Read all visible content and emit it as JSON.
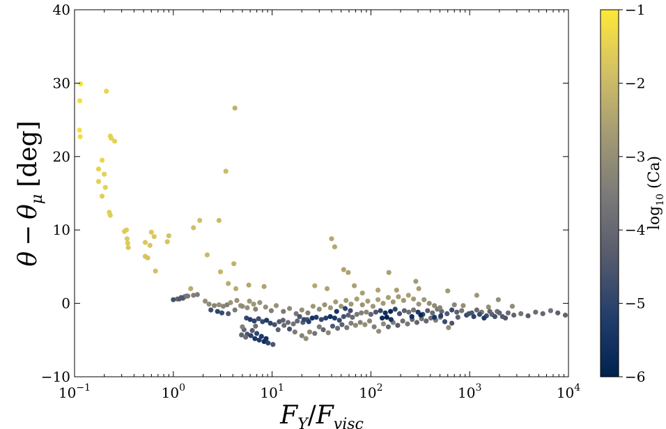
{
  "chart_data": {
    "type": "scatter",
    "title": "",
    "xlabel": {
      "var": "F",
      "sub1": "Y",
      "sep": "/",
      "var2": "F",
      "sub2": "visc"
    },
    "ylabel": {
      "a": "θ",
      "op": "−",
      "b": "θ",
      "sub": "μ",
      "unit": "[deg]"
    },
    "xscale": "log",
    "xlim": [
      0.1,
      10000
    ],
    "ylim": [
      -10,
      40
    ],
    "x_ticks": [
      {
        "value": 0.1,
        "base": "10",
        "exp": "−1"
      },
      {
        "value": 1,
        "base": "10",
        "exp": "0"
      },
      {
        "value": 10,
        "base": "10",
        "exp": "1"
      },
      {
        "value": 100,
        "base": "10",
        "exp": "2"
      },
      {
        "value": 1000,
        "base": "10",
        "exp": "3"
      },
      {
        "value": 10000,
        "base": "10",
        "exp": "4"
      }
    ],
    "y_ticks": [
      {
        "value": -10,
        "label": "−10"
      },
      {
        "value": 0,
        "label": "0"
      },
      {
        "value": 10,
        "label": "10"
      },
      {
        "value": 20,
        "label": "20"
      },
      {
        "value": 30,
        "label": "30"
      },
      {
        "value": 40,
        "label": "40"
      }
    ],
    "grid": false,
    "colorbar": {
      "label": {
        "pre": "log",
        "sub": "10",
        "post": " (Ca)"
      },
      "range": [
        -6,
        -1
      ],
      "colormap": "cividis",
      "colors": [
        "#00224e",
        "#233e6c",
        "#575c6d",
        "#7c7b78",
        "#a59c74",
        "#d3c164",
        "#fee838"
      ],
      "ticks": [
        {
          "value": -1,
          "label": "−1"
        },
        {
          "value": -2,
          "label": "−2"
        },
        {
          "value": -3,
          "label": "−3"
        },
        {
          "value": -4,
          "label": "−4"
        },
        {
          "value": -5,
          "label": "−5"
        },
        {
          "value": -6,
          "label": "−6"
        }
      ]
    },
    "points": [
      [
        0.115,
        29.9,
        -1.15
      ],
      [
        0.113,
        27.6,
        -1.2
      ],
      [
        0.112,
        23.6,
        -1.2
      ],
      [
        0.114,
        22.7,
        -1.25
      ],
      [
        0.21,
        28.9,
        -1.4
      ],
      [
        0.23,
        22.8,
        -1.5
      ],
      [
        0.235,
        22.5,
        -1.5
      ],
      [
        0.255,
        22.1,
        -1.5
      ],
      [
        0.19,
        19.5,
        -1.4
      ],
      [
        0.175,
        18.3,
        -1.45
      ],
      [
        0.2,
        17.6,
        -1.5
      ],
      [
        0.175,
        16.6,
        -1.5
      ],
      [
        0.205,
        15.8,
        -1.5
      ],
      [
        0.19,
        14.6,
        -1.55
      ],
      [
        0.225,
        12.4,
        -1.55
      ],
      [
        0.23,
        12.0,
        -1.6
      ],
      [
        0.32,
        9.8,
        -1.6
      ],
      [
        0.335,
        10.0,
        -1.6
      ],
      [
        0.34,
        8.8,
        -1.65
      ],
      [
        0.345,
        8.2,
        -1.65
      ],
      [
        0.35,
        7.6,
        -1.7
      ],
      [
        0.52,
        8.3,
        -1.7
      ],
      [
        0.6,
        9.7,
        -1.7
      ],
      [
        0.64,
        9.1,
        -1.7
      ],
      [
        0.58,
        7.9,
        -1.75
      ],
      [
        0.52,
        6.4,
        -1.75
      ],
      [
        0.55,
        6.2,
        -1.8
      ],
      [
        0.66,
        4.4,
        -1.85
      ],
      [
        0.9,
        9.2,
        -1.8
      ],
      [
        0.87,
        8.4,
        -1.8
      ],
      [
        1.6,
        10.3,
        -1.9
      ],
      [
        1.85,
        11.3,
        -1.9
      ],
      [
        2.2,
        6.6,
        -2.0
      ],
      [
        2.9,
        11.3,
        -2.0
      ],
      [
        3.0,
        4.3,
        -2.1
      ],
      [
        3.4,
        18.0,
        -2.0
      ],
      [
        4.2,
        26.6,
        -2.2
      ],
      [
        4.1,
        5.4,
        -2.2
      ],
      [
        1.5,
        2.0,
        -2.3
      ],
      [
        3.6,
        2.7,
        -2.3
      ],
      [
        4.3,
        2.0,
        -2.3
      ],
      [
        5.8,
        2.5,
        -2.4
      ],
      [
        8.3,
        2.3,
        -2.5
      ],
      [
        27.0,
        2.4,
        -2.4
      ],
      [
        36.0,
        2.0,
        -2.5
      ],
      [
        40.0,
        8.8,
        -2.4
      ],
      [
        43.0,
        7.7,
        -2.4
      ],
      [
        53.0,
        4.6,
        -2.5
      ],
      [
        59.0,
        4.2,
        -2.5
      ],
      [
        68.0,
        2.4,
        -2.6
      ],
      [
        82.0,
        1.4,
        -2.6
      ],
      [
        118.0,
        1.8,
        -2.5
      ],
      [
        152.0,
        4.2,
        -2.6
      ],
      [
        182.0,
        1.8,
        -2.6
      ],
      [
        285.0,
        3.0,
        -2.7
      ],
      [
        305.0,
        2.0,
        -2.6
      ],
      [
        600.0,
        1.7,
        -2.7
      ],
      [
        1180.0,
        1.1,
        -2.8
      ],
      [
        1950.0,
        0.5,
        -3.0
      ],
      [
        1.1,
        0.6,
        -4.0
      ],
      [
        1.2,
        0.8,
        -4.2
      ],
      [
        1.3,
        0.9,
        -3.9
      ],
      [
        1.25,
        0.7,
        -4.5
      ],
      [
        1.4,
        1.0,
        -3.7
      ],
      [
        1.75,
        1.2,
        -3.5
      ],
      [
        2.1,
        0.3,
        -3.0
      ],
      [
        2.3,
        -0.1,
        -3.1
      ],
      [
        2.6,
        -0.3,
        -3.3
      ],
      [
        2.9,
        -0.2,
        -3.0
      ],
      [
        3.2,
        -0.4,
        -3.2
      ],
      [
        3.5,
        -0.2,
        -3.4
      ],
      [
        2.4,
        -0.9,
        -4.7
      ],
      [
        2.8,
        -1.1,
        -5.0
      ],
      [
        3.1,
        -1.3,
        -4.8
      ],
      [
        3.6,
        -1.4,
        -4.4
      ],
      [
        4.2,
        -0.9,
        -3.5
      ],
      [
        4.8,
        -0.3,
        -2.9
      ],
      [
        5.6,
        -0.6,
        -3.0
      ],
      [
        6.5,
        -0.1,
        -2.8
      ],
      [
        5.5,
        -2.0,
        -4.9
      ],
      [
        6.0,
        -2.2,
        -5.2
      ],
      [
        6.6,
        -2.4,
        -5.0
      ],
      [
        7.3,
        -2.1,
        -4.7
      ],
      [
        8.0,
        -2.5,
        -4.9
      ],
      [
        8.8,
        -2.3,
        -5.3
      ],
      [
        9.6,
        -2.7,
        -5.0
      ],
      [
        10.6,
        -2.9,
        -4.6
      ],
      [
        11.8,
        -2.5,
        -4.4
      ],
      [
        12.9,
        -2.3,
        -4.1
      ],
      [
        14.5,
        -2.6,
        -3.9
      ],
      [
        16.4,
        -2.8,
        -3.7
      ],
      [
        18.0,
        -2.4,
        -4.0
      ],
      [
        20.5,
        -2.6,
        -4.3
      ],
      [
        22.6,
        -2.2,
        -4.5
      ],
      [
        25.5,
        -2.0,
        -5.5
      ],
      [
        28.0,
        -1.9,
        -5.2
      ],
      [
        31.5,
        -2.2,
        -4.9
      ],
      [
        35.0,
        -2.0,
        -5.1
      ],
      [
        38.8,
        -1.8,
        -5.6
      ],
      [
        43.0,
        -2.0,
        -5.3
      ],
      [
        48.0,
        -2.3,
        -4.8
      ],
      [
        53.0,
        -1.8,
        -4.6
      ],
      [
        59.0,
        -1.6,
        -4.2
      ],
      [
        65.0,
        -1.9,
        -3.9
      ],
      [
        72.0,
        -1.5,
        -3.6
      ],
      [
        80.0,
        -1.3,
        -3.4
      ],
      [
        90.0,
        -1.2,
        -3.2
      ],
      [
        100.0,
        -1.5,
        -4.1
      ],
      [
        112.0,
        -1.2,
        -4.5
      ],
      [
        125.0,
        -1.0,
        -4.9
      ],
      [
        140.0,
        -1.3,
        -5.6
      ],
      [
        158.0,
        -1.1,
        -5.8
      ],
      [
        176.0,
        -0.8,
        -5.0
      ],
      [
        195.0,
        -1.4,
        -4.6
      ],
      [
        218.0,
        -1.0,
        -4.2
      ],
      [
        242.0,
        -1.2,
        -3.8
      ],
      [
        270.0,
        -0.9,
        -3.6
      ],
      [
        300.0,
        -1.2,
        -5.3
      ],
      [
        335.0,
        -1.5,
        -4.9
      ],
      [
        375.0,
        -1.0,
        -4.3
      ],
      [
        420.0,
        -1.3,
        -3.9
      ],
      [
        470.0,
        -0.8,
        -3.5
      ],
      [
        520.0,
        -1.1,
        -4.0
      ],
      [
        590.0,
        -1.4,
        -4.4
      ],
      [
        660.0,
        -0.9,
        -4.8
      ],
      [
        740.0,
        -1.2,
        -4.2
      ],
      [
        830.0,
        -1.0,
        -3.7
      ],
      [
        930.0,
        -1.6,
        -4.9
      ],
      [
        1050.0,
        -1.3,
        -4.5
      ],
      [
        1180.0,
        -0.9,
        -3.9
      ],
      [
        1320.0,
        -1.2,
        -3.6
      ],
      [
        1480.0,
        -1.7,
        -4.7
      ],
      [
        1680.0,
        -1.5,
        -4.2
      ],
      [
        1900.0,
        -1.1,
        -3.8
      ],
      [
        2150.0,
        -1.8,
        -4.4
      ],
      [
        2450.0,
        -1.3,
        -3.9
      ],
      [
        2800.0,
        -1.6,
        -4.1
      ],
      [
        3300.0,
        -1.4,
        -3.7
      ],
      [
        3900.0,
        -1.7,
        -4.3
      ],
      [
        4650.0,
        -1.2,
        -3.9
      ],
      [
        5500.0,
        -1.4,
        -4.0
      ],
      [
        6600.0,
        -1.0,
        -3.8
      ],
      [
        7800.0,
        -1.3,
        -4.2
      ],
      [
        9300.0,
        -1.6,
        -4.1
      ],
      [
        2700.0,
        -0.4,
        -3.1
      ],
      [
        1550.0,
        -0.5,
        -3.0
      ],
      [
        860.0,
        -0.3,
        -3.0
      ],
      [
        5.2,
        -3.6,
        -4.0
      ],
      [
        5.6,
        -4.2,
        -4.6
      ],
      [
        6.1,
        -4.4,
        -5.0
      ],
      [
        6.7,
        -4.8,
        -5.4
      ],
      [
        7.4,
        -5.0,
        -5.2
      ],
      [
        8.3,
        -5.2,
        -5.6
      ],
      [
        9.1,
        -5.4,
        -5.0
      ],
      [
        10.2,
        -5.6,
        -4.5
      ],
      [
        5.0,
        -3.2,
        -3.4
      ],
      [
        6.3,
        -3.7,
        -4.4
      ],
      [
        7.0,
        -4.1,
        -4.9
      ],
      [
        7.8,
        -4.5,
        -5.3
      ],
      [
        8.7,
        -4.8,
        -5.5
      ],
      [
        4.9,
        -4.3,
        -4.1
      ],
      [
        5.4,
        -4.6,
        -3.9
      ],
      [
        6.8,
        -3.1,
        -3.8
      ],
      [
        11.5,
        -3.6,
        -4.2
      ],
      [
        13.2,
        -3.0,
        -3.9
      ],
      [
        15.0,
        -3.5,
        -4.6
      ],
      [
        17.0,
        -3.9,
        -3.5
      ],
      [
        20.0,
        -4.4,
        -3.3
      ],
      [
        22.0,
        -4.8,
        -3.0
      ],
      [
        24.0,
        -3.9,
        -3.1
      ],
      [
        27.0,
        -4.1,
        -3.7
      ],
      [
        30.0,
        -3.2,
        -3.5
      ],
      [
        33.0,
        -3.6,
        -4.1
      ],
      [
        37.0,
        -4.0,
        -3.2
      ],
      [
        41.0,
        -3.1,
        -4.4
      ],
      [
        46.0,
        -3.4,
        -3.9
      ],
      [
        51.0,
        -2.9,
        -4.2
      ],
      [
        57.0,
        -3.3,
        -3.6
      ],
      [
        63.0,
        -2.7,
        -3.4
      ],
      [
        70.0,
        -3.0,
        -3.1
      ],
      [
        78.0,
        -2.6,
        -3.3
      ],
      [
        87.0,
        -2.9,
        -3.0
      ],
      [
        97.0,
        -2.4,
        -3.2
      ],
      [
        108.0,
        -3.2,
        -3.4
      ],
      [
        120.0,
        -3.8,
        -3.0
      ],
      [
        134.0,
        -2.8,
        -3.1
      ],
      [
        150.0,
        -3.2,
        -4.0
      ],
      [
        168.0,
        -2.6,
        -3.5
      ],
      [
        187.0,
        -3.0,
        -4.3
      ],
      [
        210.0,
        -2.4,
        -3.8
      ],
      [
        235.0,
        -2.8,
        -3.6
      ],
      [
        262.0,
        -2.2,
        -3.9
      ],
      [
        292.0,
        -2.6,
        -4.1
      ],
      [
        326.0,
        -2.1,
        -3.7
      ],
      [
        363.0,
        -2.4,
        -4.0
      ],
      [
        405.0,
        -2.0,
        -3.8
      ],
      [
        452.0,
        -2.3,
        -3.5
      ],
      [
        505.0,
        -1.9,
        -3.3
      ],
      [
        610.0,
        -3.3,
        -3.1
      ],
      [
        1.0,
        0.5,
        -4.6
      ],
      [
        1.15,
        0.6,
        -4.4
      ],
      [
        1.35,
        1.0,
        -3.6
      ],
      [
        1.6,
        1.1,
        -3.4
      ],
      [
        3.8,
        0.1,
        -2.8
      ],
      [
        4.4,
        0.4,
        -2.9
      ],
      [
        5.0,
        -0.4,
        -3.1
      ],
      [
        5.9,
        0.3,
        -2.8
      ],
      [
        6.8,
        -0.8,
        -3.3
      ],
      [
        7.5,
        0.1,
        -2.9
      ],
      [
        8.6,
        -0.5,
        -3.0
      ],
      [
        9.8,
        -1.0,
        -3.4
      ],
      [
        11.0,
        -0.3,
        -2.9
      ],
      [
        13.0,
        -1.1,
        -3.5
      ],
      [
        15.0,
        -0.7,
        -3.1
      ],
      [
        17.5,
        -1.4,
        -3.6
      ],
      [
        20.0,
        -0.9,
        -3.0
      ],
      [
        23.0,
        -1.3,
        -3.4
      ],
      [
        26.0,
        -0.4,
        -2.8
      ],
      [
        30.0,
        -0.8,
        -3.0
      ],
      [
        34.0,
        -0.2,
        -2.9
      ],
      [
        39.0,
        -0.6,
        -2.8
      ],
      [
        44.0,
        0.2,
        -2.7
      ],
      [
        50.0,
        -0.4,
        -2.9
      ],
      [
        56.0,
        0.4,
        -2.7
      ],
      [
        63.0,
        -0.1,
        -2.8
      ],
      [
        72.0,
        0.6,
        -2.6
      ],
      [
        82.0,
        -0.2,
        -2.9
      ],
      [
        93.0,
        0.3,
        -2.7
      ],
      [
        105.0,
        -0.4,
        -2.8
      ],
      [
        118.0,
        0.5,
        -2.6
      ],
      [
        133.0,
        0.0,
        -2.7
      ],
      [
        150.0,
        0.8,
        -2.6
      ],
      [
        168.0,
        0.2,
        -2.8
      ],
      [
        190.0,
        0.9,
        -2.7
      ],
      [
        214.0,
        0.4,
        -2.8
      ],
      [
        240.0,
        1.1,
        -2.6
      ],
      [
        270.0,
        0.6,
        -2.7
      ],
      [
        305.0,
        -0.1,
        -2.9
      ],
      [
        345.0,
        0.5,
        -2.8
      ],
      [
        390.0,
        0.0,
        -3.0
      ],
      [
        440.0,
        -0.3,
        -3.1
      ],
      [
        500.0,
        -0.6,
        -3.3
      ],
      [
        700.0,
        -0.2,
        -3.2
      ],
      [
        19.0,
        -1.8,
        -4.5
      ],
      [
        21.0,
        -2.2,
        -4.9
      ],
      [
        23.5,
        -2.5,
        -5.2
      ],
      [
        45.0,
        -1.1,
        -5.4
      ],
      [
        55.0,
        -0.7,
        -5.0
      ],
      [
        62.0,
        -1.0,
        -4.7
      ],
      [
        130.0,
        -2.0,
        -5.7
      ],
      [
        145.0,
        -1.9,
        -5.9
      ],
      [
        160.0,
        -2.2,
        -5.5
      ],
      [
        260.0,
        -1.8,
        -5.6
      ],
      [
        320.0,
        -1.6,
        -5.8
      ],
      [
        440.0,
        -1.9,
        -5.4
      ],
      [
        510.0,
        -1.7,
        -5.1
      ],
      [
        560.0,
        -2.5,
        -4.8
      ],
      [
        660.0,
        -2.7,
        -4.5
      ],
      [
        760.0,
        -1.9,
        -4.2
      ],
      [
        980.0,
        -1.4,
        -4.6
      ],
      [
        1100.0,
        -1.8,
        -5.0
      ],
      [
        1260.0,
        -1.5,
        -4.8
      ],
      [
        1400.0,
        -2.0,
        -5.3
      ],
      [
        1600.0,
        -1.1,
        -4.0
      ],
      [
        1800.0,
        -1.8,
        -4.6
      ],
      [
        2000.0,
        -1.3,
        -4.1
      ],
      [
        2300.0,
        -2.0,
        -4.5
      ]
    ]
  }
}
